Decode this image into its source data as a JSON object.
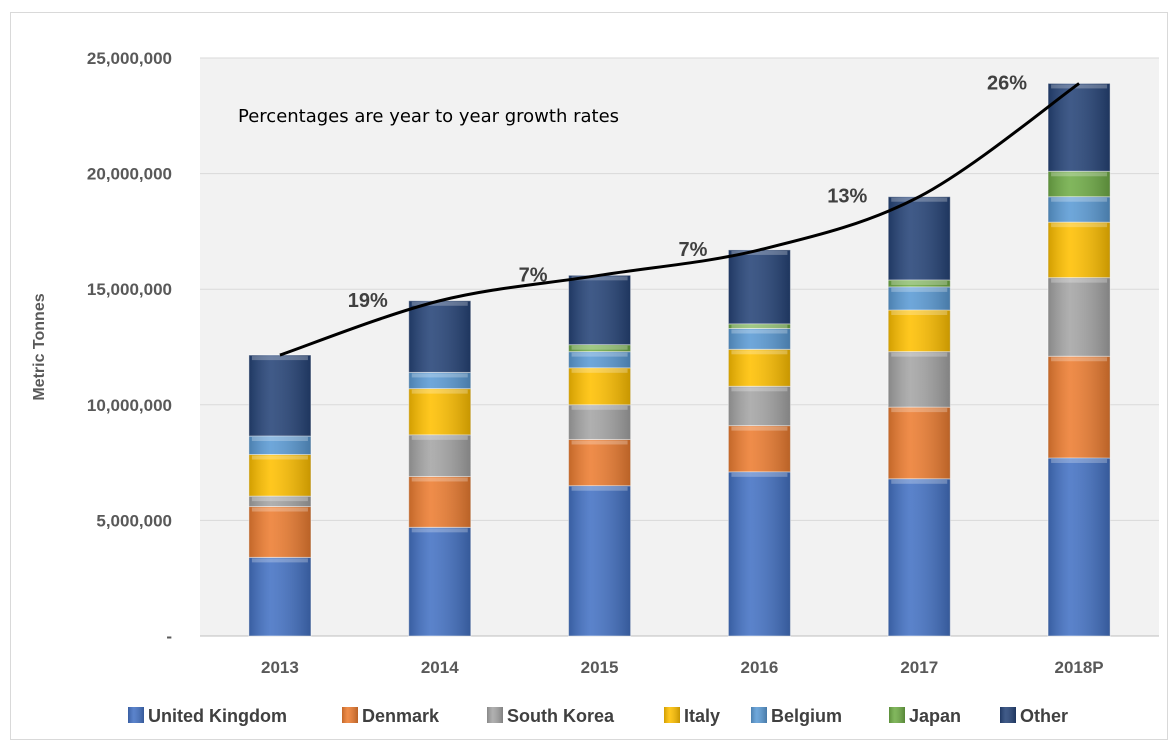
{
  "chart_data": {
    "type": "bar",
    "stacked": true,
    "categories": [
      "2013",
      "2014",
      "2015",
      "2016",
      "2017",
      "2018P"
    ],
    "ylabel": "Metric Tonnes",
    "ylim": [
      0,
      25000000
    ],
    "yticks": [
      0,
      5000000,
      10000000,
      15000000,
      20000000,
      25000000
    ],
    "ytick_labels": [
      "-",
      "5,000,000",
      "10,000,000",
      "15,000,000",
      "20,000,000",
      "25,000,000"
    ],
    "annotation": "Percentages are year to year growth rates",
    "growth_labels": [
      "",
      "19%",
      "7%",
      "7%",
      "13%",
      "26%"
    ],
    "trend_line": true,
    "grid": true,
    "legend_position": "bottom",
    "series": [
      {
        "name": "United Kingdom",
        "color": "#4472c4",
        "values": [
          3400000,
          4700000,
          6500000,
          7100000,
          6800000,
          7700000
        ]
      },
      {
        "name": "Denmark",
        "color": "#ed7d31",
        "values": [
          2200000,
          2200000,
          2000000,
          2000000,
          3100000,
          4400000
        ]
      },
      {
        "name": "South Korea",
        "color": "#a5a5a5",
        "values": [
          450000,
          1800000,
          1500000,
          1700000,
          2400000,
          3400000
        ]
      },
      {
        "name": "Italy",
        "color": "#ffc000",
        "values": [
          1800000,
          2000000,
          1600000,
          1600000,
          1800000,
          2400000
        ]
      },
      {
        "name": "Belgium",
        "color": "#5b9bd5",
        "values": [
          800000,
          700000,
          700000,
          900000,
          1000000,
          1100000
        ]
      },
      {
        "name": "Japan",
        "color": "#70ad47",
        "values": [
          0,
          0,
          300000,
          200000,
          300000,
          1100000
        ]
      },
      {
        "name": "Other",
        "color": "#264478",
        "values": [
          3500000,
          3100000,
          3000000,
          3200000,
          3600000,
          3800000
        ]
      }
    ]
  }
}
